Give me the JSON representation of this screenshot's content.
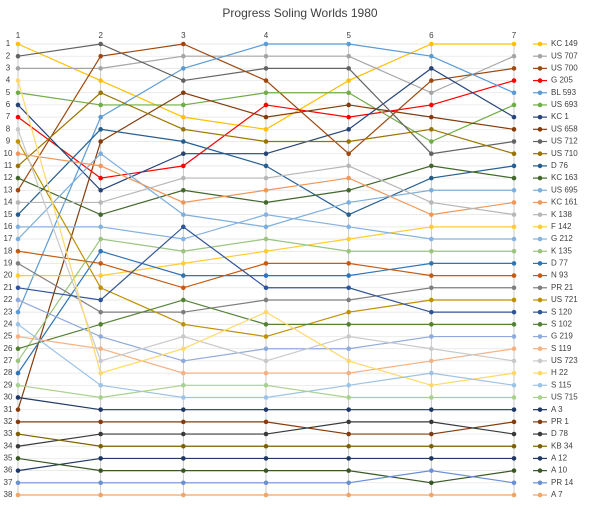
{
  "chart_data": {
    "type": "line",
    "title": "Progress Soling Worlds 1980",
    "categories": [
      "1",
      "2",
      "3",
      "4",
      "5",
      "6",
      "7"
    ],
    "ylim": [
      38,
      1
    ],
    "yticks": [
      1,
      2,
      3,
      4,
      5,
      6,
      7,
      8,
      9,
      10,
      11,
      12,
      13,
      14,
      15,
      16,
      17,
      18,
      19,
      20,
      21,
      22,
      23,
      24,
      25,
      26,
      27,
      28,
      29,
      30,
      31,
      32,
      33,
      34,
      35,
      36,
      37,
      38
    ],
    "grid": true,
    "legend": "right",
    "series": [
      {
        "name": "KC 149",
        "color": "#FFC000",
        "values": [
          1,
          4,
          7,
          8,
          4,
          1,
          1
        ]
      },
      {
        "name": "US 707",
        "color": "#A5A5A5",
        "values": [
          3,
          3,
          2,
          2,
          2,
          5,
          2
        ]
      },
      {
        "name": "US 700",
        "color": "#9E480E",
        "values": [
          13,
          2,
          1,
          4,
          10,
          4,
          3
        ]
      },
      {
        "name": "G 205",
        "color": "#FF0000",
        "values": [
          7,
          12,
          11,
          6,
          7,
          6,
          4
        ]
      },
      {
        "name": "BL 593",
        "color": "#5B9BD5",
        "values": [
          23,
          7,
          3,
          1,
          1,
          2,
          5
        ]
      },
      {
        "name": "US 693",
        "color": "#70AD47",
        "values": [
          5,
          6,
          6,
          5,
          5,
          9,
          6
        ]
      },
      {
        "name": "KC 1",
        "color": "#264478",
        "values": [
          6,
          13,
          10,
          10,
          8,
          3,
          7
        ]
      },
      {
        "name": "US 658",
        "color": "#843C0C",
        "values": [
          31,
          9,
          5,
          7,
          6,
          7,
          8
        ]
      },
      {
        "name": "US 712",
        "color": "#636363",
        "values": [
          2,
          1,
          4,
          3,
          3,
          10,
          9
        ]
      },
      {
        "name": "US 710",
        "color": "#997300",
        "values": [
          11,
          5,
          8,
          9,
          9,
          8,
          10
        ]
      },
      {
        "name": "D 76",
        "color": "#255E91",
        "values": [
          15,
          8,
          9,
          11,
          15,
          12,
          11
        ]
      },
      {
        "name": "KC 163",
        "color": "#43682B",
        "values": [
          12,
          15,
          13,
          14,
          13,
          11,
          12
        ]
      },
      {
        "name": "US 695",
        "color": "#7CAFDD",
        "values": [
          17,
          10,
          15,
          16,
          14,
          13,
          13
        ]
      },
      {
        "name": "KC 161",
        "color": "#F1975A",
        "values": [
          10,
          11,
          14,
          13,
          12,
          15,
          14
        ]
      },
      {
        "name": "K 138",
        "color": "#B7B7B7",
        "values": [
          14,
          14,
          12,
          12,
          11,
          14,
          15
        ]
      },
      {
        "name": "F 142",
        "color": "#FFCD33",
        "values": [
          20,
          20,
          19,
          18,
          17,
          16,
          16
        ]
      },
      {
        "name": "G 212",
        "color": "#86B2E0",
        "values": [
          16,
          16,
          17,
          15,
          16,
          17,
          17
        ]
      },
      {
        "name": "K 135",
        "color": "#9BC57F",
        "values": [
          27,
          17,
          18,
          17,
          18,
          18,
          18
        ]
      },
      {
        "name": "D 77",
        "color": "#2E75B6",
        "values": [
          28,
          18,
          20,
          20,
          20,
          19,
          19
        ]
      },
      {
        "name": "N 93",
        "color": "#C55A11",
        "values": [
          18,
          19,
          21,
          19,
          19,
          20,
          20
        ]
      },
      {
        "name": "PR 21",
        "color": "#7F7F7F",
        "values": [
          19,
          23,
          23,
          22,
          22,
          21,
          21
        ]
      },
      {
        "name": "US 721",
        "color": "#BF9000",
        "values": [
          9,
          21,
          24,
          25,
          23,
          22,
          22
        ]
      },
      {
        "name": "S 120",
        "color": "#2F5597",
        "values": [
          21,
          22,
          16,
          21,
          21,
          23,
          23
        ]
      },
      {
        "name": "S 102",
        "color": "#548235",
        "values": [
          26,
          24,
          22,
          24,
          24,
          24,
          24
        ]
      },
      {
        "name": "G 219",
        "color": "#8FAADC",
        "values": [
          22,
          25,
          27,
          26,
          26,
          25,
          25
        ]
      },
      {
        "name": "S 119",
        "color": "#F4B183",
        "values": [
          25,
          26,
          28,
          28,
          28,
          27,
          26
        ]
      },
      {
        "name": "US 723",
        "color": "#C9C9C9",
        "values": [
          8,
          27,
          25,
          27,
          25,
          26,
          27
        ]
      },
      {
        "name": "H 22",
        "color": "#FFD966",
        "values": [
          4,
          28,
          26,
          23,
          27,
          29,
          28
        ]
      },
      {
        "name": "S 115",
        "color": "#9DC3E6",
        "values": [
          24,
          29,
          30,
          30,
          29,
          28,
          29
        ]
      },
      {
        "name": "US 715",
        "color": "#A9D18E",
        "values": [
          29,
          30,
          29,
          29,
          30,
          30,
          30
        ]
      },
      {
        "name": "A 3",
        "color": "#1F3864",
        "values": [
          30,
          31,
          31,
          31,
          31,
          31,
          31
        ]
      },
      {
        "name": "PR 1",
        "color": "#843C0C",
        "values": [
          32,
          32,
          32,
          32,
          33,
          33,
          32
        ]
      },
      {
        "name": "D 78",
        "color": "#3A3A3A",
        "values": [
          34,
          33,
          33,
          33,
          32,
          32,
          33
        ]
      },
      {
        "name": "KB 34",
        "color": "#7F6000",
        "values": [
          33,
          34,
          34,
          34,
          34,
          34,
          34
        ]
      },
      {
        "name": "A 12",
        "color": "#203864",
        "values": [
          36,
          35,
          35,
          35,
          35,
          35,
          35
        ]
      },
      {
        "name": "A 10",
        "color": "#385723",
        "values": [
          35,
          36,
          36,
          36,
          36,
          37,
          36
        ]
      },
      {
        "name": "PR 14",
        "color": "#6B8FD6",
        "values": [
          37,
          37,
          37,
          37,
          37,
          36,
          37
        ]
      },
      {
        "name": "A 7",
        "color": "#F4A460",
        "values": [
          38,
          38,
          38,
          38,
          38,
          38,
          38
        ]
      }
    ]
  }
}
